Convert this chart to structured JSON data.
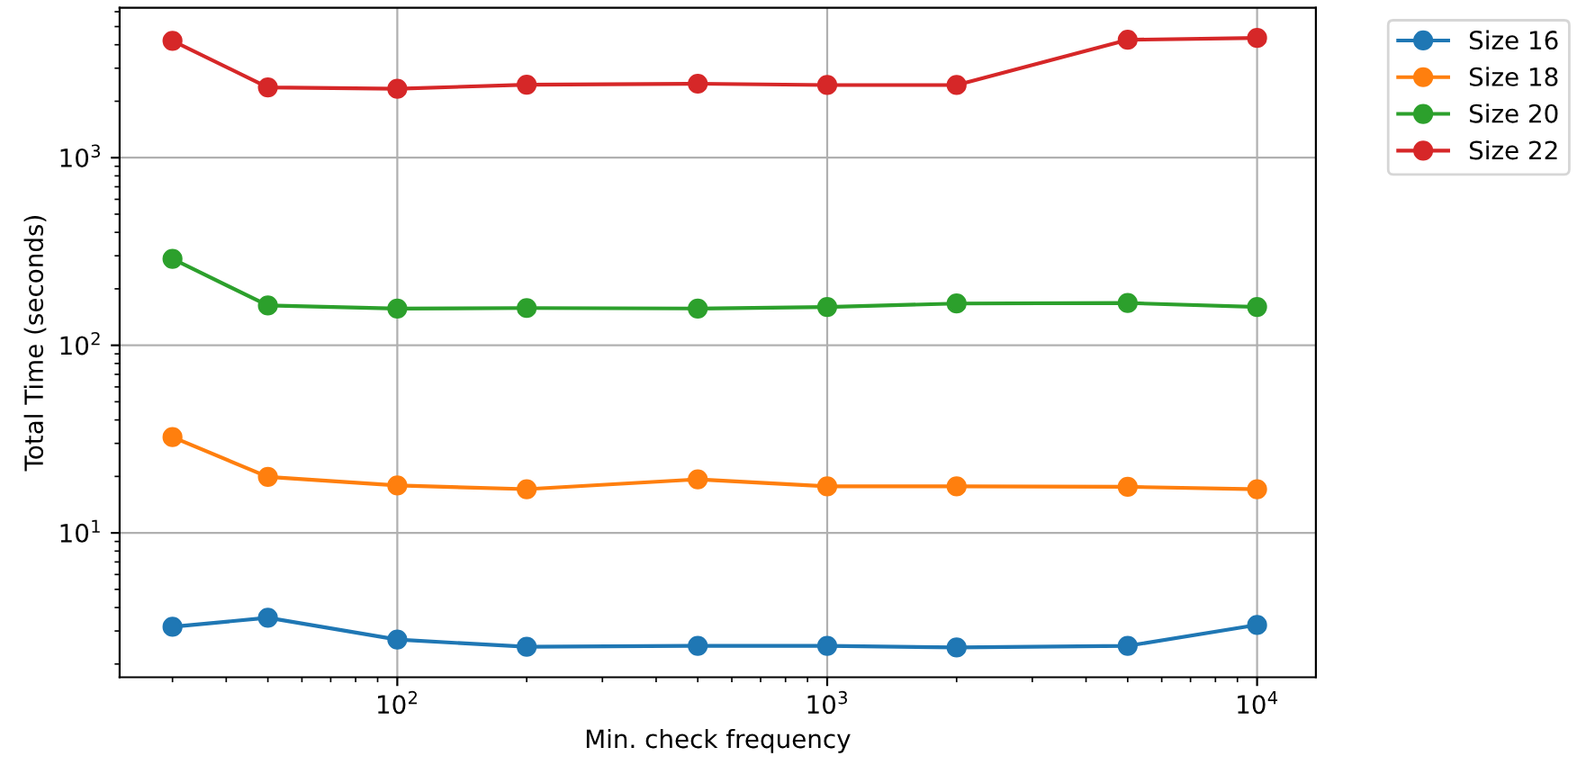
{
  "chart_data": {
    "type": "line",
    "xlabel": "Min. check frequency",
    "ylabel": "Total Time (seconds)",
    "log": "xy",
    "grid": true,
    "legend": "top right",
    "marker": "circle",
    "line_style": "solid",
    "x": [
      30,
      50,
      100,
      200,
      500,
      1000,
      2000,
      5000,
      10000
    ],
    "xlim": [
      22.6,
      13700
    ],
    "ylim": [
      1.7,
      6300
    ],
    "xticks": [
      {
        "value": 100,
        "label": "10$^{2}$"
      },
      {
        "value": 1000,
        "label": "10$^{3}$"
      },
      {
        "value": 10000,
        "label": "10$^{4}$"
      }
    ],
    "yticks": [
      {
        "value": 10,
        "label": "10$^{1}$"
      },
      {
        "value": 100,
        "label": "10$^{2}$"
      },
      {
        "value": 1000,
        "label": "10$^{3}$"
      }
    ],
    "series": [
      {
        "name": "Size 16",
        "color": "#1f77b4",
        "values": [
          3.16,
          3.53,
          2.7,
          2.47,
          2.5,
          2.5,
          2.45,
          2.5,
          3.23
        ]
      },
      {
        "name": "Size 18",
        "color": "#ff7f0e",
        "values": [
          32.4,
          19.9,
          17.9,
          17.1,
          19.3,
          17.7,
          17.7,
          17.6,
          17.1
        ]
      },
      {
        "name": "Size 20",
        "color": "#2ca02c",
        "values": [
          289,
          163,
          157,
          158,
          157,
          160,
          167,
          168,
          160
        ]
      },
      {
        "name": "Size 22",
        "color": "#d62728",
        "values": [
          4200,
          2370,
          2330,
          2450,
          2480,
          2440,
          2440,
          4250,
          4350
        ]
      }
    ]
  }
}
